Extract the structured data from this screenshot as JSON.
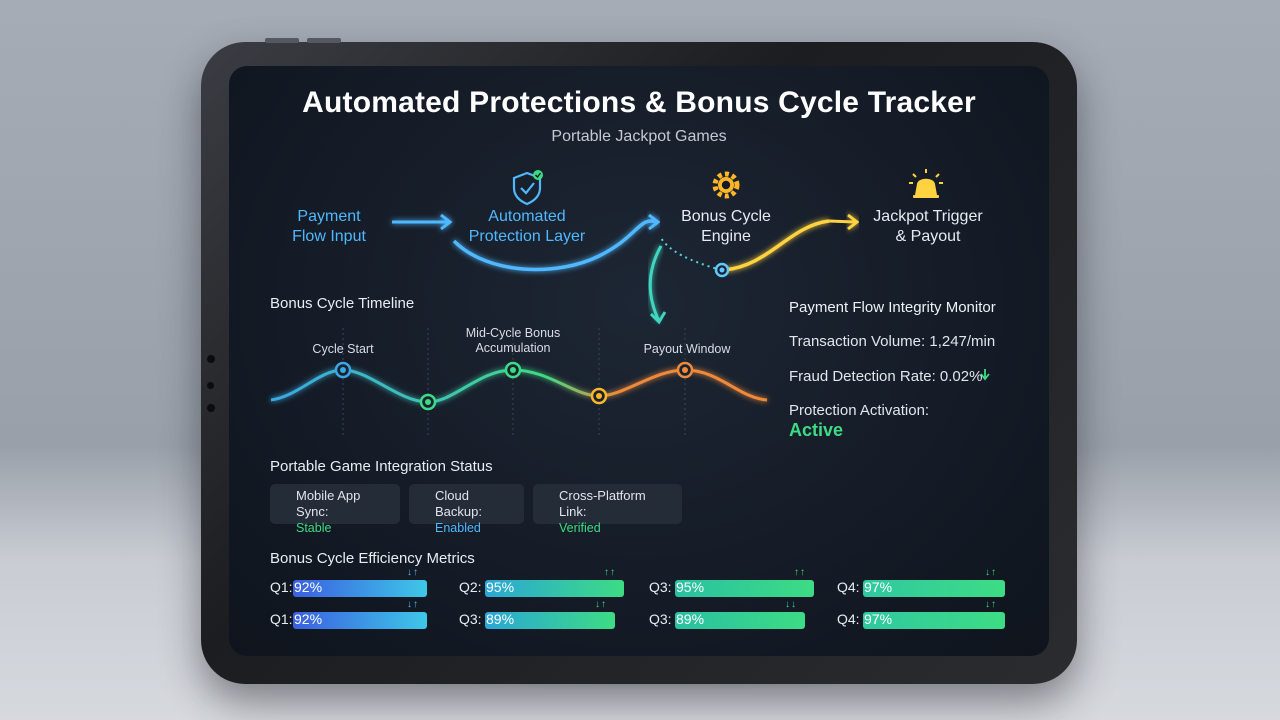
{
  "title": "Automated Protections & Bonus Cycle Tracker",
  "subtitle": "Portable Jackpot Games",
  "flow": [
    {
      "line1": "Payment",
      "line2": "Flow Input",
      "color": "#4fb8ff",
      "icon": ""
    },
    {
      "line1": "Automated",
      "line2": "Protection Layer",
      "color": "#4fb8ff",
      "icon": "shield-check-icon"
    },
    {
      "line1": "Bonus Cycle",
      "line2": "Engine",
      "color": "#ffffff",
      "icon": "gear-icon"
    },
    {
      "line1": "Jackpot Trigger",
      "line2": "& Payout",
      "color": "#ffffff",
      "icon": "bell-icon"
    }
  ],
  "timeline": {
    "heading": "Bonus Cycle Timeline",
    "labels": [
      {
        "text": "Cycle Start"
      },
      {
        "text": "Mid-Cycle Bonus Accumulation"
      },
      {
        "text": "Payout Window"
      }
    ]
  },
  "monitor": {
    "heading": "Payment Flow Integrity Monitor",
    "transaction_volume": "Transaction Volume: 1,247/min",
    "fraud_rate": "Fraud Detection Rate: 0.02%",
    "fraud_trend_icon": "arrow-down-icon",
    "protection_label": "Protection Activation:",
    "protection_value": "Active"
  },
  "integration": {
    "heading": "Portable Game Integration Status",
    "items": [
      {
        "label": "Mobile App Sync:",
        "status": "Stable",
        "status_color": "#3ddc84",
        "icon": "green-dot-icon"
      },
      {
        "label": "Cloud Backup:",
        "status": "Enabled",
        "status_color": "#4fb8ff",
        "icon": "cloud-icon"
      },
      {
        "label": "Cross-Platform Link:",
        "status": "Verified",
        "status_color": "#3ddc84",
        "icon": "link-icon"
      }
    ]
  },
  "metrics": {
    "heading": "Bonus Cycle Efficiency Metrics",
    "rows": [
      [
        {
          "quarter": "Q1:",
          "value": "92%",
          "pct": 92,
          "arrows": "↓↑"
        },
        {
          "quarter": "Q2:",
          "value": "95%",
          "pct": 95,
          "arrows": "↑↑"
        },
        {
          "quarter": "Q3:",
          "value": "95%",
          "pct": 95,
          "arrows": "↑↑"
        },
        {
          "quarter": "Q4:",
          "value": "97%",
          "pct": 97,
          "arrows": "↓↑"
        }
      ],
      [
        {
          "quarter": "Q1:",
          "value": "92%",
          "pct": 92,
          "arrows": "↓↑"
        },
        {
          "quarter": "Q3:",
          "value": "89%",
          "pct": 89,
          "arrows": "↓↑"
        },
        {
          "quarter": "Q3:",
          "value": "89%",
          "pct": 89,
          "arrows": "↓↓"
        },
        {
          "quarter": "Q4:",
          "value": "97%",
          "pct": 97,
          "arrows": "↓↑"
        }
      ]
    ]
  },
  "colors": {
    "blue": "#4fb8ff",
    "green": "#3ddc84",
    "orange": "#f08a3a",
    "yellow": "#ffd23f"
  }
}
